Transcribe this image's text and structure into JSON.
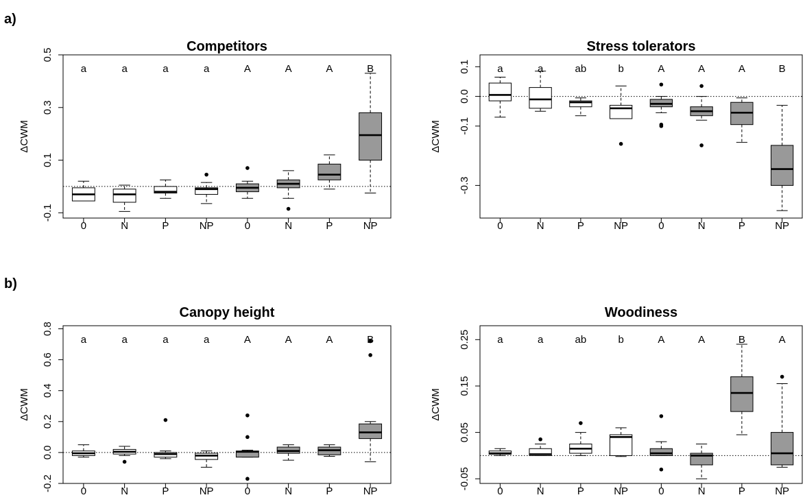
{
  "panels": [
    {
      "label": "a)"
    },
    {
      "label": "b)"
    }
  ],
  "chart_data": [
    {
      "type": "box",
      "title": "Competitors",
      "ylabel": "ΔCWM",
      "ylim": [
        -0.12,
        0.5
      ],
      "yticks": [
        -0.1,
        0.1,
        0.3,
        0.5
      ],
      "ytick_labels": [
        "-0.1",
        "0.1",
        "0.3",
        "0.5"
      ],
      "categories": [
        "0",
        "N",
        "P",
        "NP",
        "0",
        "N",
        "P",
        "NP"
      ],
      "letters": [
        "a",
        "a",
        "a",
        "a",
        "A",
        "A",
        "A",
        "B"
      ],
      "fills": [
        "#ffffff",
        "#ffffff",
        "#ffffff",
        "#ffffff",
        "#999999",
        "#999999",
        "#999999",
        "#999999"
      ],
      "reference_line": 0,
      "boxes": [
        {
          "lw": -0.055,
          "q1": -0.055,
          "median": -0.03,
          "q3": -0.005,
          "uw": 0.02,
          "outliers": []
        },
        {
          "lw": -0.095,
          "q1": -0.06,
          "median": -0.03,
          "q3": -0.01,
          "uw": 0.005,
          "outliers": []
        },
        {
          "lw": -0.045,
          "q1": -0.025,
          "median": -0.02,
          "q3": 0.0,
          "uw": 0.025,
          "outliers": []
        },
        {
          "lw": -0.065,
          "q1": -0.03,
          "median": -0.01,
          "q3": -0.005,
          "uw": 0.015,
          "outliers": [
            0.045
          ]
        },
        {
          "lw": -0.045,
          "q1": -0.02,
          "median": -0.005,
          "q3": 0.01,
          "uw": 0.02,
          "outliers": [
            0.07
          ]
        },
        {
          "lw": -0.045,
          "q1": -0.005,
          "median": 0.01,
          "q3": 0.025,
          "uw": 0.06,
          "outliers": [
            -0.085
          ]
        },
        {
          "lw": -0.01,
          "q1": 0.025,
          "median": 0.045,
          "q3": 0.085,
          "uw": 0.12,
          "outliers": []
        },
        {
          "lw": -0.025,
          "q1": 0.1,
          "median": 0.195,
          "q3": 0.28,
          "uw": 0.43,
          "outliers": []
        }
      ]
    },
    {
      "type": "box",
      "title": "Stress tolerators",
      "ylabel": "ΔCWM",
      "ylim": [
        -0.41,
        0.14
      ],
      "yticks": [
        -0.3,
        -0.1,
        0.0,
        0.1
      ],
      "ytick_labels": [
        "-0.3",
        "-0.1",
        "0.0",
        "0.1"
      ],
      "categories": [
        "0",
        "N",
        "P",
        "NP",
        "0",
        "N",
        "P",
        "NP"
      ],
      "letters": [
        "a",
        "a",
        "ab",
        "b",
        "A",
        "A",
        "A",
        "B"
      ],
      "fills": [
        "#ffffff",
        "#ffffff",
        "#ffffff",
        "#ffffff",
        "#999999",
        "#999999",
        "#999999",
        "#999999"
      ],
      "reference_line": 0,
      "boxes": [
        {
          "lw": -0.07,
          "q1": -0.015,
          "median": 0.005,
          "q3": 0.045,
          "uw": 0.065,
          "outliers": []
        },
        {
          "lw": -0.05,
          "q1": -0.04,
          "median": -0.01,
          "q3": 0.03,
          "uw": 0.085,
          "outliers": []
        },
        {
          "lw": -0.065,
          "q1": -0.035,
          "median": -0.02,
          "q3": -0.015,
          "uw": -0.005,
          "outliers": []
        },
        {
          "lw": -0.075,
          "q1": -0.075,
          "median": -0.04,
          "q3": -0.03,
          "uw": 0.035,
          "outliers": [
            -0.16
          ]
        },
        {
          "lw": -0.055,
          "q1": -0.035,
          "median": -0.025,
          "q3": -0.01,
          "uw": 0.0,
          "outliers": [
            0.04,
            -0.095,
            -0.1
          ]
        },
        {
          "lw": -0.08,
          "q1": -0.065,
          "median": -0.05,
          "q3": -0.035,
          "uw": 0.0,
          "outliers": [
            0.035,
            -0.165
          ]
        },
        {
          "lw": -0.155,
          "q1": -0.095,
          "median": -0.055,
          "q3": -0.02,
          "uw": -0.005,
          "outliers": []
        },
        {
          "lw": -0.385,
          "q1": -0.3,
          "median": -0.245,
          "q3": -0.165,
          "uw": -0.03,
          "outliers": []
        }
      ]
    },
    {
      "type": "box",
      "title": "Canopy height",
      "ylabel": "ΔCWM",
      "ylim": [
        -0.2,
        0.82
      ],
      "yticks": [
        -0.2,
        0.0,
        0.2,
        0.4,
        0.6,
        0.8
      ],
      "ytick_labels": [
        "-0.2",
        "0.0",
        "0.2",
        "0.4",
        "0.6",
        "0.8"
      ],
      "categories": [
        "0",
        "N",
        "P",
        "NP",
        "0",
        "N",
        "P",
        "NP"
      ],
      "letters": [
        "a",
        "a",
        "a",
        "a",
        "A",
        "A",
        "A",
        "B"
      ],
      "fills": [
        "#ffffff",
        "#ffffff",
        "#ffffff",
        "#ffffff",
        "#999999",
        "#999999",
        "#999999",
        "#999999"
      ],
      "reference_line": 0,
      "boxes": [
        {
          "lw": -0.03,
          "q1": -0.02,
          "median": -0.005,
          "q3": 0.01,
          "uw": 0.05,
          "outliers": []
        },
        {
          "lw": -0.02,
          "q1": -0.01,
          "median": 0.005,
          "q3": 0.02,
          "uw": 0.04,
          "outliers": [
            -0.06
          ]
        },
        {
          "lw": -0.04,
          "q1": -0.03,
          "median": -0.01,
          "q3": 0.0,
          "uw": 0.01,
          "outliers": [
            0.21
          ]
        },
        {
          "lw": -0.095,
          "q1": -0.045,
          "median": -0.02,
          "q3": -0.005,
          "uw": 0.01,
          "outliers": []
        },
        {
          "lw": -0.03,
          "q1": -0.03,
          "median": 0.005,
          "q3": 0.01,
          "uw": 0.015,
          "outliers": [
            0.24,
            0.1,
            -0.17
          ]
        },
        {
          "lw": -0.05,
          "q1": -0.005,
          "median": 0.01,
          "q3": 0.035,
          "uw": 0.05,
          "outliers": []
        },
        {
          "lw": -0.025,
          "q1": -0.015,
          "median": 0.015,
          "q3": 0.035,
          "uw": 0.05,
          "outliers": []
        },
        {
          "lw": -0.06,
          "q1": 0.09,
          "median": 0.13,
          "q3": 0.185,
          "uw": 0.2,
          "outliers": [
            0.72,
            0.63
          ]
        }
      ]
    },
    {
      "type": "box",
      "title": "Woodiness",
      "ylabel": "ΔCWM",
      "ylim": [
        -0.06,
        0.28
      ],
      "yticks": [
        -0.05,
        0.05,
        0.15,
        0.25
      ],
      "ytick_labels": [
        "-0.05",
        "0.05",
        "0.15",
        "0.25"
      ],
      "categories": [
        "0",
        "N",
        "P",
        "NP",
        "0",
        "N",
        "P",
        "NP"
      ],
      "letters": [
        "a",
        "a",
        "ab",
        "b",
        "A",
        "A",
        "B",
        "A"
      ],
      "fills": [
        "#ffffff",
        "#ffffff",
        "#ffffff",
        "#ffffff",
        "#999999",
        "#999999",
        "#999999",
        "#999999"
      ],
      "reference_line": 0,
      "boxes": [
        {
          "lw": 0.0,
          "q1": 0.003,
          "median": 0.005,
          "q3": 0.01,
          "uw": 0.015,
          "outliers": []
        },
        {
          "lw": 0.0,
          "q1": 0.0,
          "median": 0.003,
          "q3": 0.015,
          "uw": 0.025,
          "outliers": [
            0.035
          ]
        },
        {
          "lw": 0.0,
          "q1": 0.005,
          "median": 0.015,
          "q3": 0.025,
          "uw": 0.05,
          "outliers": [
            0.07
          ]
        },
        {
          "lw": -0.002,
          "q1": 0.0,
          "median": 0.04,
          "q3": 0.045,
          "uw": 0.06,
          "outliers": []
        },
        {
          "lw": 0.0,
          "q1": 0.0,
          "median": 0.005,
          "q3": 0.015,
          "uw": 0.03,
          "outliers": [
            0.085,
            -0.03
          ]
        },
        {
          "lw": -0.05,
          "q1": -0.02,
          "median": 0.0,
          "q3": 0.005,
          "uw": 0.025,
          "outliers": []
        },
        {
          "lw": 0.045,
          "q1": 0.095,
          "median": 0.135,
          "q3": 0.17,
          "uw": 0.24,
          "outliers": []
        },
        {
          "lw": -0.025,
          "q1": -0.02,
          "median": 0.005,
          "q3": 0.05,
          "uw": 0.155,
          "outliers": [
            0.17
          ]
        }
      ]
    }
  ]
}
